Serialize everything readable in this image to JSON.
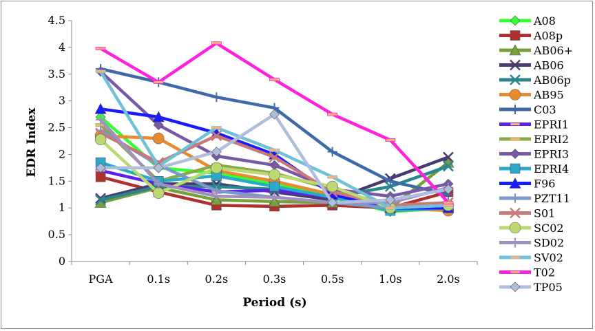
{
  "chart_data": {
    "type": "line",
    "title": "",
    "xlabel": "Period (s)",
    "ylabel": "EDR Index",
    "categories": [
      "PGA",
      "0.1s",
      "0.2s",
      "0.3s",
      "0.5s",
      "1.0s",
      "2.0s"
    ],
    "ylim": [
      0,
      4.5
    ],
    "yticks": [
      "0",
      "0.5",
      "1",
      "1.5",
      "2",
      "2.5",
      "3",
      "3.5",
      "4",
      "4.5"
    ],
    "grid": false,
    "legend_position": "right",
    "series": [
      {
        "name": "A08",
        "color": "#33ff33",
        "marker": "diamond",
        "values": [
          2.7,
          1.75,
          1.65,
          1.45,
          1.2,
          0.93,
          1.0
        ]
      },
      {
        "name": "A08p",
        "color": "#b03030",
        "marker": "square",
        "values": [
          1.58,
          1.3,
          1.05,
          1.03,
          1.05,
          1.0,
          1.3
        ]
      },
      {
        "name": "AB06+",
        "color": "#77a03a",
        "marker": "triangle",
        "values": [
          1.1,
          1.38,
          1.15,
          1.12,
          1.1,
          1.0,
          1.85
        ]
      },
      {
        "name": "AB06",
        "color": "#4a3a6e",
        "marker": "x",
        "values": [
          1.18,
          1.45,
          1.45,
          1.3,
          1.15,
          1.55,
          1.95
        ]
      },
      {
        "name": "AB06p",
        "color": "#2a8590",
        "marker": "x",
        "values": [
          1.15,
          1.4,
          1.4,
          1.35,
          1.2,
          1.4,
          1.78
        ]
      },
      {
        "name": "AB95",
        "color": "#e88a30",
        "marker": "circle",
        "values": [
          2.35,
          2.3,
          1.7,
          1.5,
          1.25,
          1.0,
          0.95
        ]
      },
      {
        "name": "C03",
        "color": "#3e6aa8",
        "marker": "plus",
        "values": [
          3.6,
          3.35,
          3.07,
          2.87,
          2.05,
          1.5,
          1.25
        ]
      },
      {
        "name": "EPRI1",
        "color": "#5a22e8",
        "marker": "dash",
        "values": [
          1.7,
          1.45,
          1.3,
          1.33,
          1.2,
          1.05,
          1.05
        ]
      },
      {
        "name": "EPRI2",
        "color": "#8aaa4a",
        "marker": "dash",
        "values": [
          2.55,
          1.5,
          1.8,
          1.65,
          1.35,
          1.05,
          1.05
        ]
      },
      {
        "name": "EPRI3",
        "color": "#7a58a8",
        "marker": "diamond",
        "values": [
          3.55,
          2.55,
          1.97,
          1.8,
          1.35,
          1.22,
          1.45
        ]
      },
      {
        "name": "EPRI4",
        "color": "#2aaac8",
        "marker": "square",
        "values": [
          1.85,
          1.5,
          1.6,
          1.4,
          1.2,
          0.95,
          1.0
        ]
      },
      {
        "name": "F96",
        "color": "#1a1aff",
        "marker": "triangle",
        "values": [
          2.85,
          2.7,
          2.4,
          2.0,
          1.25,
          1.0,
          1.0
        ]
      },
      {
        "name": "PZT11",
        "color": "#7a98c8",
        "marker": "plus",
        "values": [
          2.45,
          1.8,
          1.32,
          1.2,
          1.1,
          1.0,
          1.05
        ]
      },
      {
        "name": "S01",
        "color": "#c87878",
        "marker": "x",
        "values": [
          2.4,
          1.85,
          2.35,
          1.95,
          1.3,
          1.05,
          1.1
        ]
      },
      {
        "name": "SC02",
        "color": "#bcd870",
        "marker": "circle",
        "values": [
          2.28,
          1.28,
          1.75,
          1.62,
          1.4,
          1.0,
          1.05
        ]
      },
      {
        "name": "SD02",
        "color": "#a090c0",
        "marker": "plus",
        "values": [
          2.65,
          1.45,
          1.22,
          1.2,
          1.1,
          1.1,
          1.38
        ]
      },
      {
        "name": "SV02",
        "color": "#70c0d8",
        "marker": "dash",
        "values": [
          3.55,
          1.78,
          2.5,
          2.08,
          1.58,
          1.0,
          1.05
        ]
      },
      {
        "name": "T02",
        "color": "#ff22dd",
        "marker": "dash",
        "values": [
          3.98,
          3.35,
          4.08,
          3.4,
          2.75,
          2.27,
          1.1
        ]
      },
      {
        "name": "TP05",
        "color": "#b0bedd",
        "marker": "diamond",
        "values": [
          1.75,
          1.75,
          2.05,
          2.75,
          1.1,
          1.15,
          1.35
        ]
      }
    ]
  }
}
